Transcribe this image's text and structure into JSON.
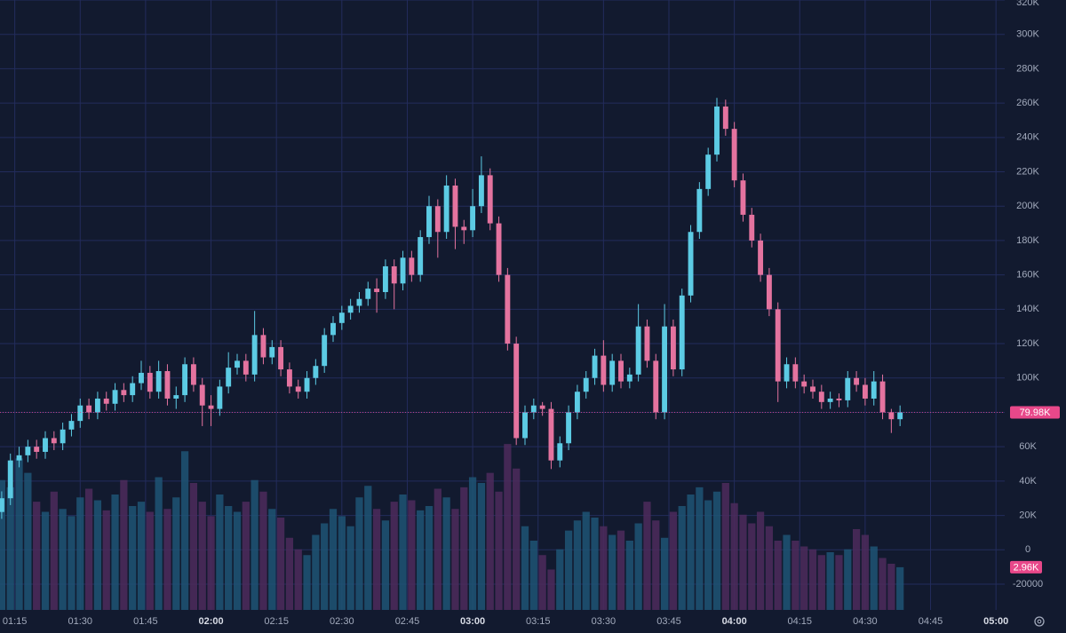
{
  "chart_data": {
    "type": "candlestick",
    "x": [
      "01:12",
      "01:14",
      "01:16",
      "01:18",
      "01:20",
      "01:22",
      "01:24",
      "01:26",
      "01:28",
      "01:30",
      "01:32",
      "01:34",
      "01:36",
      "01:38",
      "01:40",
      "01:42",
      "01:44",
      "01:46",
      "01:48",
      "01:50",
      "01:52",
      "01:54",
      "01:56",
      "01:58",
      "02:00",
      "02:02",
      "02:04",
      "02:06",
      "02:08",
      "02:10",
      "02:12",
      "02:14",
      "02:16",
      "02:18",
      "02:20",
      "02:22",
      "02:24",
      "02:26",
      "02:28",
      "02:30",
      "02:32",
      "02:34",
      "02:36",
      "02:38",
      "02:40",
      "02:42",
      "02:44",
      "02:46",
      "02:48",
      "02:50",
      "02:52",
      "02:54",
      "02:56",
      "02:58",
      "03:00",
      "03:02",
      "03:04",
      "03:06",
      "03:08",
      "03:10",
      "03:12",
      "03:14",
      "03:16",
      "03:18",
      "03:20",
      "03:22",
      "03:24",
      "03:26",
      "03:28",
      "03:30",
      "03:32",
      "03:34",
      "03:36",
      "03:38",
      "03:40",
      "03:42",
      "03:44",
      "03:46",
      "03:48",
      "03:50",
      "03:52",
      "03:54",
      "03:56",
      "03:58",
      "04:00",
      "04:02",
      "04:04",
      "04:06",
      "04:08",
      "04:10",
      "04:12",
      "04:14",
      "04:16",
      "04:18",
      "04:20",
      "04:22",
      "04:24",
      "04:26",
      "04:28",
      "04:30",
      "04:32",
      "04:34",
      "04:36",
      "04:38"
    ],
    "open": [
      22000,
      30000,
      52000,
      55000,
      60000,
      57000,
      65000,
      62000,
      70000,
      75000,
      84000,
      80000,
      88000,
      85000,
      93000,
      90000,
      97000,
      103000,
      92000,
      104000,
      88000,
      90000,
      108000,
      96000,
      84000,
      82000,
      95000,
      106000,
      110000,
      102000,
      125000,
      112000,
      118000,
      105000,
      95000,
      92000,
      100000,
      107000,
      125000,
      132000,
      138000,
      142000,
      146000,
      152000,
      150000,
      165000,
      155000,
      170000,
      160000,
      182000,
      200000,
      185000,
      212000,
      188000,
      186000,
      200000,
      218000,
      190000,
      160000,
      120000,
      65000,
      80000,
      84000,
      82000,
      52000,
      62000,
      80000,
      92000,
      100000,
      113000,
      96000,
      110000,
      98000,
      102000,
      130000,
      110000,
      80000,
      130000,
      105000,
      148000,
      185000,
      210000,
      230000,
      258000,
      245000,
      215000,
      195000,
      180000,
      160000,
      140000,
      98000,
      108000,
      98000,
      95000,
      92000,
      86000,
      88000,
      87000,
      100000,
      96000,
      88000,
      98000,
      80000,
      76000
    ],
    "high": [
      34000,
      56000,
      60000,
      64000,
      64000,
      69000,
      69000,
      74000,
      79000,
      88000,
      88000,
      92000,
      92000,
      97000,
      97000,
      101000,
      110000,
      107000,
      110000,
      108000,
      95000,
      112000,
      112000,
      100000,
      90000,
      99000,
      115000,
      114000,
      114000,
      139000,
      129000,
      122000,
      122000,
      109000,
      99000,
      104000,
      111000,
      129000,
      136000,
      142000,
      146000,
      150000,
      156000,
      158000,
      169000,
      169000,
      174000,
      174000,
      186000,
      206000,
      204000,
      218000,
      216000,
      192000,
      210000,
      229000,
      222000,
      194000,
      164000,
      124000,
      84000,
      88000,
      86000,
      86000,
      66000,
      84000,
      96000,
      104000,
      117000,
      122000,
      114000,
      114000,
      106000,
      143000,
      134000,
      114000,
      143000,
      134000,
      152000,
      189000,
      214000,
      234000,
      263000,
      262000,
      249000,
      219000,
      199000,
      184000,
      164000,
      144000,
      112000,
      112000,
      102000,
      99000,
      96000,
      92000,
      91000,
      104000,
      104000,
      100000,
      104000,
      102000,
      82000,
      84000
    ],
    "low": [
      18000,
      26000,
      48000,
      51000,
      53000,
      53000,
      58000,
      58000,
      66000,
      71000,
      76000,
      76000,
      81000,
      81000,
      86000,
      86000,
      93000,
      88000,
      88000,
      84000,
      82000,
      86000,
      92000,
      72000,
      72000,
      78000,
      91000,
      102000,
      98000,
      98000,
      108000,
      108000,
      101000,
      91000,
      88000,
      88000,
      96000,
      103000,
      121000,
      128000,
      134000,
      138000,
      142000,
      138000,
      146000,
      140000,
      151000,
      156000,
      156000,
      178000,
      170000,
      181000,
      175000,
      178000,
      182000,
      196000,
      186000,
      156000,
      116000,
      61000,
      61000,
      76000,
      78000,
      47000,
      48000,
      58000,
      76000,
      88000,
      96000,
      92000,
      92000,
      94000,
      94000,
      98000,
      106000,
      76000,
      76000,
      101000,
      101000,
      144000,
      181000,
      206000,
      226000,
      241000,
      211000,
      191000,
      176000,
      156000,
      136000,
      86000,
      94000,
      94000,
      91000,
      88000,
      82000,
      82000,
      83000,
      83000,
      92000,
      84000,
      84000,
      76000,
      68000,
      72000
    ],
    "close": [
      30000,
      52000,
      55000,
      60000,
      57000,
      65000,
      62000,
      70000,
      75000,
      84000,
      80000,
      88000,
      85000,
      93000,
      90000,
      97000,
      103000,
      92000,
      104000,
      88000,
      90000,
      108000,
      96000,
      84000,
      82000,
      95000,
      106000,
      110000,
      102000,
      125000,
      112000,
      118000,
      105000,
      95000,
      92000,
      100000,
      107000,
      125000,
      132000,
      138000,
      142000,
      146000,
      152000,
      150000,
      165000,
      155000,
      170000,
      160000,
      182000,
      200000,
      185000,
      212000,
      188000,
      186000,
      200000,
      218000,
      190000,
      160000,
      120000,
      65000,
      80000,
      84000,
      82000,
      52000,
      62000,
      80000,
      92000,
      100000,
      113000,
      96000,
      110000,
      98000,
      102000,
      130000,
      110000,
      80000,
      130000,
      105000,
      148000,
      185000,
      210000,
      230000,
      258000,
      245000,
      215000,
      195000,
      180000,
      160000,
      140000,
      98000,
      108000,
      98000,
      95000,
      92000,
      86000,
      88000,
      87000,
      100000,
      96000,
      88000,
      98000,
      80000,
      76000,
      79980
    ],
    "volume": [
      9000,
      8500,
      10500,
      9500,
      7500,
      6800,
      8200,
      7000,
      6500,
      7800,
      8400,
      7600,
      6900,
      8000,
      9000,
      7200,
      7500,
      6800,
      9200,
      7000,
      7800,
      11000,
      8800,
      7500,
      6500,
      8000,
      7200,
      6800,
      7500,
      9000,
      8200,
      7000,
      6400,
      5000,
      4200,
      3800,
      5200,
      6000,
      7000,
      6500,
      5800,
      7800,
      8600,
      7000,
      6200,
      7500,
      8000,
      7600,
      6900,
      7200,
      8400,
      7800,
      7000,
      8500,
      9200,
      8800,
      9500,
      8200,
      11500,
      9800,
      5800,
      4800,
      3800,
      2800,
      4200,
      5500,
      6200,
      6800,
      6400,
      5800,
      5200,
      5500,
      4800,
      6000,
      7500,
      6200,
      5000,
      6800,
      7200,
      8000,
      8500,
      7600,
      8200,
      8800,
      7400,
      6600,
      6000,
      6800,
      5800,
      4800,
      5200,
      4800,
      4400,
      4200,
      3800,
      4000,
      3800,
      4200,
      5600,
      5200,
      4400,
      3600,
      3200,
      2960
    ],
    "last_close_label": "79.98K",
    "last_volume_label": "2.96K",
    "xlim": [
      "01:11",
      "05:02"
    ],
    "xticks": [
      "01:15",
      "01:30",
      "01:45",
      "02:00",
      "02:15",
      "02:30",
      "02:45",
      "03:00",
      "03:15",
      "03:30",
      "03:45",
      "04:00",
      "04:15",
      "04:30",
      "04:45",
      "05:00"
    ],
    "ylim": [
      -35000,
      320000
    ],
    "yticks": [
      -20000,
      0,
      {
        "value": 20000,
        "label": "20K"
      },
      {
        "value": 40000,
        "label": "40K"
      },
      {
        "value": 60000,
        "label": "60K"
      },
      {
        "value": 80000,
        "label": "80K"
      },
      {
        "value": 100000,
        "label": "100K"
      },
      {
        "value": 120000,
        "label": "120K"
      },
      {
        "value": 140000,
        "label": "140K"
      },
      {
        "value": 160000,
        "label": "160K"
      },
      {
        "value": 180000,
        "label": "180K"
      },
      {
        "value": 200000,
        "label": "200K"
      },
      {
        "value": 220000,
        "label": "220K"
      },
      {
        "value": 240000,
        "label": "240K"
      },
      {
        "value": 260000,
        "label": "260K"
      },
      {
        "value": 280000,
        "label": "280K"
      },
      {
        "value": 300000,
        "label": "300K"
      },
      {
        "value": 320000,
        "label": "320K"
      }
    ],
    "volume_ylim": [
      0,
      12000
    ],
    "grid": true,
    "up_color": "#5ccbe4",
    "down_color": "#e4739f",
    "up_volume_color": "#1f5574",
    "down_volume_color": "#4e2b5c",
    "label_color": "#e8488a"
  }
}
